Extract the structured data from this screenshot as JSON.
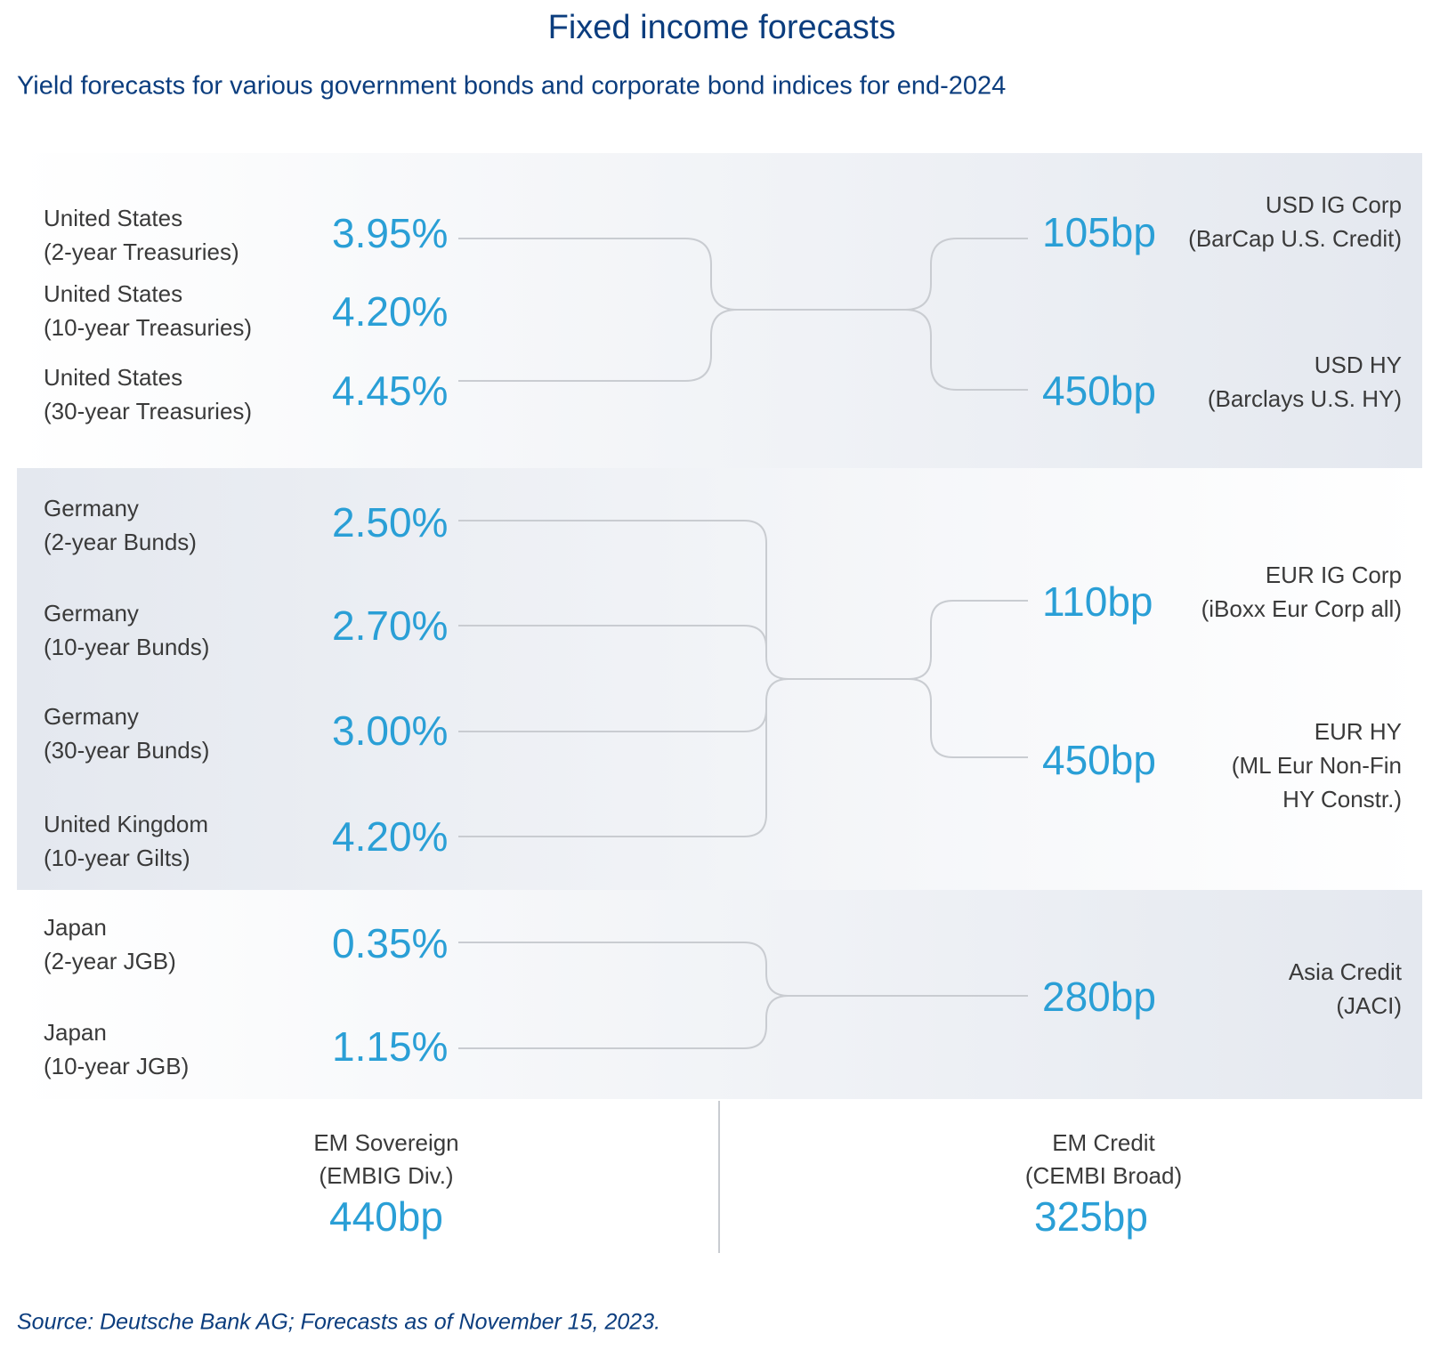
{
  "header": {
    "title": "Fixed income forecasts",
    "subtitle": "Yield forecasts for various government bonds and corporate bond indices for end-2024"
  },
  "sections": [
    {
      "left": [
        {
          "label": [
            "United States",
            "(2-year Treasuries)"
          ],
          "value": "3.95%"
        },
        {
          "label": [
            "United States",
            "(10-year Treasuries)"
          ],
          "value": "4.20%"
        },
        {
          "label": [
            "United States",
            "(30-year Treasuries)"
          ],
          "value": "4.45%"
        }
      ],
      "right": [
        {
          "label": [
            "USD IG Corp",
            "(BarCap U.S. Credit)"
          ],
          "value": "105bp"
        },
        {
          "label": [
            "USD HY",
            "(Barclays U.S. HY)"
          ],
          "value": "450bp"
        }
      ]
    },
    {
      "left": [
        {
          "label": [
            "Germany",
            "(2-year Bunds)"
          ],
          "value": "2.50%"
        },
        {
          "label": [
            "Germany",
            "(10-year Bunds)"
          ],
          "value": "2.70%"
        },
        {
          "label": [
            "Germany",
            "(30-year Bunds)"
          ],
          "value": "3.00%"
        },
        {
          "label": [
            "United Kingdom",
            "(10-year Gilts)"
          ],
          "value": "4.20%"
        }
      ],
      "right": [
        {
          "label": [
            "EUR IG Corp",
            "(iBoxx Eur Corp all)"
          ],
          "value": "110bp"
        },
        {
          "label": [
            "EUR HY",
            "(ML Eur Non-Fin",
            "HY Constr.)"
          ],
          "value": "450bp"
        }
      ]
    },
    {
      "left": [
        {
          "label": [
            "Japan",
            "(2-year JGB)"
          ],
          "value": "0.35%"
        },
        {
          "label": [
            "Japan",
            "(10-year JGB)"
          ],
          "value": "1.15%"
        }
      ],
      "right": [
        {
          "label": [
            "Asia Credit",
            "(JACI)"
          ],
          "value": "280bp"
        }
      ]
    }
  ],
  "em": [
    {
      "label": [
        "EM Sovereign",
        "(EMBIG Div.)"
      ],
      "value": "440bp"
    },
    {
      "label": [
        "EM Credit",
        "(CEMBI Broad)"
      ],
      "value": "325bp"
    }
  ],
  "source": "Source: Deutsche Bank AG; Forecasts as of November 15, 2023."
}
